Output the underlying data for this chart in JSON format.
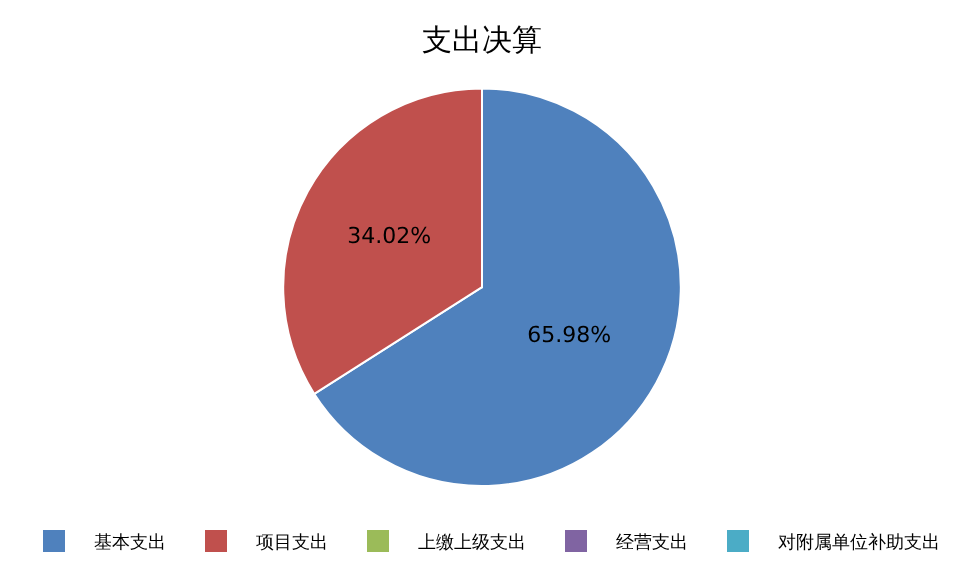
{
  "chart_data": {
    "type": "pie",
    "title": "支出决算",
    "categories": [
      "基本支出",
      "项目支出",
      "上缴上级支出",
      "经营支出",
      "对附属单位补助支出"
    ],
    "values": [
      65.98,
      34.02,
      0,
      0,
      0
    ],
    "colors": [
      "#4f81bd",
      "#c0504d",
      "#9bbb59",
      "#8064a2",
      "#4bacc6"
    ],
    "value_labels": [
      "65.98%",
      "34.02%",
      null,
      null,
      null
    ],
    "legend": "bottom"
  }
}
